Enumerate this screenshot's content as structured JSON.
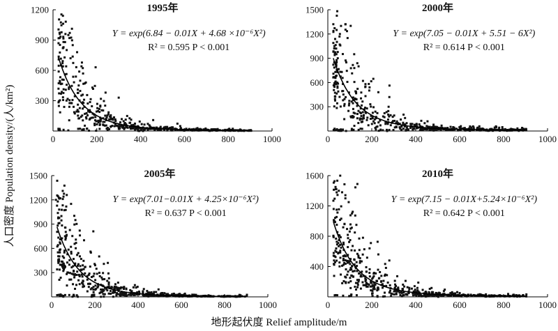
{
  "figure": {
    "ylabel": "人口密度 Population density/(人/km²)",
    "xlabel": "地形起伏度 Relief amplitude/m"
  },
  "chart_data": [
    {
      "type": "scatter",
      "title": "1995年",
      "equation": "Y = exp(6.84 − 0.01X + 4.68 ×10⁻⁶X²)",
      "stats": "R² = 0.595    P < 0.001",
      "xlim": [
        0,
        1000
      ],
      "ylim": [
        0,
        1200
      ],
      "xticks": [
        0,
        200,
        400,
        600,
        800,
        1000
      ],
      "yticks": [
        300,
        600,
        900,
        1200
      ],
      "fit": {
        "a": 6.84,
        "b": -0.01,
        "c": 4.68e-06,
        "xrange": [
          25,
          900
        ]
      },
      "scatter": {
        "seed": 11,
        "n": 520,
        "sigma": 0.58,
        "outliers": [
          [
            45,
            820
          ],
          [
            55,
            880
          ],
          [
            70,
            950
          ],
          [
            75,
            920
          ],
          [
            80,
            720
          ],
          [
            90,
            850
          ],
          [
            110,
            780
          ],
          [
            130,
            640
          ],
          [
            150,
            480
          ],
          [
            55,
            560
          ],
          [
            60,
            640
          ],
          [
            180,
            430
          ],
          [
            240,
            380
          ],
          [
            300,
            330
          ]
        ]
      }
    },
    {
      "type": "scatter",
      "title": "2000年",
      "equation": "Y = exp(7.05 − 0.01X + 5.51 − 6X²)",
      "stats": "R² = 0.614    P < 0.001",
      "xlim": [
        0,
        1000
      ],
      "ylim": [
        0,
        1500
      ],
      "xticks": [
        0,
        200,
        400,
        600,
        800,
        1000
      ],
      "yticks": [
        300,
        600,
        900,
        1200,
        1500
      ],
      "fit": {
        "a": 7.05,
        "b": -0.01,
        "c": 5.51e-06,
        "xrange": [
          25,
          900
        ]
      },
      "scatter": {
        "seed": 23,
        "n": 520,
        "sigma": 0.6,
        "outliers": [
          [
            40,
            1250
          ],
          [
            55,
            1200
          ],
          [
            60,
            1300
          ],
          [
            80,
            1320
          ],
          [
            90,
            1150
          ],
          [
            30,
            1050
          ],
          [
            120,
            950
          ],
          [
            140,
            800
          ],
          [
            160,
            620
          ],
          [
            190,
            540
          ],
          [
            230,
            480
          ],
          [
            280,
            420
          ]
        ]
      }
    },
    {
      "type": "scatter",
      "title": "2005年",
      "equation": "Y = exp(7.01−0.01X + 4.25×10⁻⁶X²)",
      "stats": "R² = 0.637    P < 0.001",
      "xlim": [
        0,
        1000
      ],
      "ylim": [
        0,
        1500
      ],
      "xticks": [
        0,
        200,
        400,
        600,
        800,
        1000
      ],
      "yticks": [
        300,
        600,
        900,
        1200,
        1500
      ],
      "fit": {
        "a": 7.01,
        "b": -0.01,
        "c": 4.25e-06,
        "xrange": [
          25,
          900
        ]
      },
      "scatter": {
        "seed": 37,
        "n": 560,
        "sigma": 0.55,
        "outliers": [
          [
            20,
            1200
          ],
          [
            40,
            1220
          ],
          [
            55,
            1240
          ],
          [
            70,
            1260
          ],
          [
            90,
            1150
          ],
          [
            35,
            1080
          ],
          [
            110,
            950
          ],
          [
            130,
            820
          ],
          [
            150,
            700
          ],
          [
            180,
            560
          ],
          [
            220,
            500
          ],
          [
            260,
            420
          ]
        ]
      }
    },
    {
      "type": "scatter",
      "title": "2010年",
      "equation": "Y = exp(7.15 − 0.01X+5.24×10⁻⁶X²)",
      "stats": "R² = 0.642    P < 0.001",
      "xlim": [
        0,
        1000
      ],
      "ylim": [
        0,
        1600
      ],
      "xticks": [
        0,
        200,
        400,
        600,
        800,
        1000
      ],
      "yticks": [
        400,
        800,
        1200,
        1600
      ],
      "fit": {
        "a": 7.15,
        "b": -0.01,
        "c": 5.24e-06,
        "xrange": [
          25,
          900
        ]
      },
      "scatter": {
        "seed": 53,
        "n": 560,
        "sigma": 0.58,
        "outliers": [
          [
            35,
            1450
          ],
          [
            50,
            1400
          ],
          [
            65,
            1380
          ],
          [
            80,
            1300
          ],
          [
            95,
            1250
          ],
          [
            40,
            1150
          ],
          [
            110,
            1100
          ],
          [
            130,
            950
          ],
          [
            160,
            780
          ],
          [
            190,
            640
          ],
          [
            230,
            560
          ],
          [
            280,
            480
          ]
        ]
      }
    }
  ]
}
